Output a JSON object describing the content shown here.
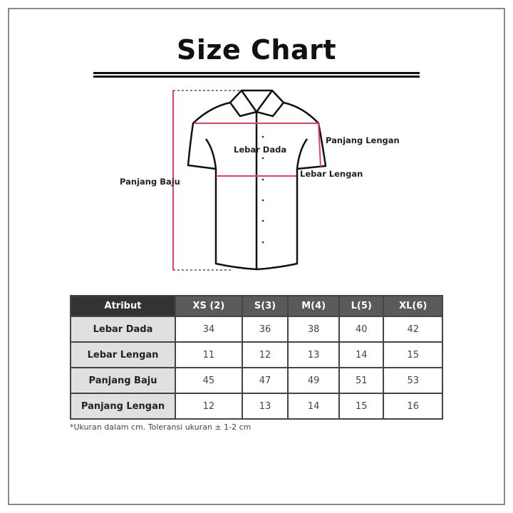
{
  "title": "Size Chart",
  "diagram_labels": {
    "panjang_baju": "Panjang Baju",
    "lebar_dada": "Lebar Dada",
    "panjang_lengan": "Panjang Lengan",
    "lebar_lengan": "Lebar Lengan"
  },
  "colors": {
    "measure_line": "#e8435a",
    "header_bg": "#5a5a5a",
    "header_first_bg": "#333333",
    "attr_bg": "#e0e0e0"
  },
  "table": {
    "headers": [
      "Atribut",
      "XS (2)",
      "S(3)",
      "M(4)",
      "L(5)",
      "XL(6)"
    ],
    "rows": [
      {
        "label": "Lebar Dada",
        "values": [
          "34",
          "36",
          "38",
          "40",
          "42"
        ]
      },
      {
        "label": "Lebar Lengan",
        "values": [
          "11",
          "12",
          "13",
          "14",
          "15"
        ]
      },
      {
        "label": "Panjang Baju",
        "values": [
          "45",
          "47",
          "49",
          "51",
          "53"
        ]
      },
      {
        "label": "Panjang Lengan",
        "values": [
          "12",
          "13",
          "14",
          "15",
          "16"
        ]
      }
    ]
  },
  "note": "*Ukuran dalam cm. Toleransi ukuran ± 1-2 cm"
}
